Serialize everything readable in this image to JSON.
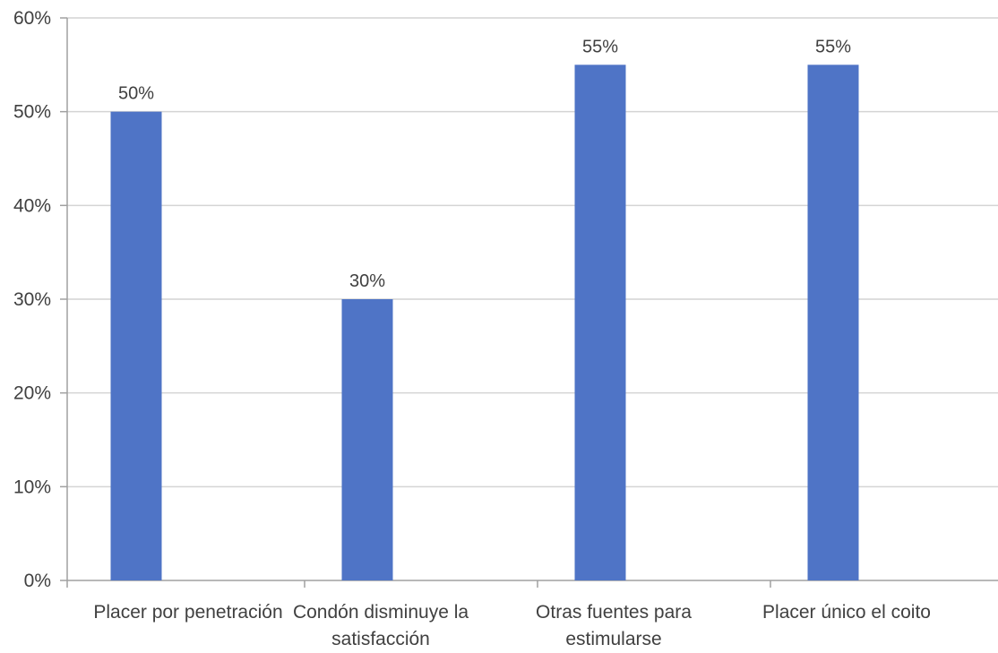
{
  "colors": {
    "bar": "#4f74c6",
    "grid": "#d4d4d4",
    "axis": "#a0a0a0",
    "text": "#404040"
  },
  "chart_data": {
    "type": "bar",
    "title": "",
    "xlabel": "",
    "ylabel": "",
    "categories": [
      "Placer por penetración",
      "Condón disminuye la satisfacción",
      "Otras fuentes para estimularse",
      "Placer único el coito"
    ],
    "category_lines": [
      [
        "Placer por penetración"
      ],
      [
        "Condón disminuye la",
        "satisfacción"
      ],
      [
        "Otras fuentes para",
        "estimularse"
      ],
      [
        "Placer único el coito"
      ]
    ],
    "values": [
      50,
      30,
      55,
      55
    ],
    "data_labels": [
      "50%",
      "30%",
      "55%",
      "55%"
    ],
    "ylim": [
      0,
      60
    ],
    "yticks": [
      0,
      10,
      20,
      30,
      40,
      50,
      60
    ],
    "ytick_labels": [
      "0%",
      "10%",
      "20%",
      "30%",
      "40%",
      "50%",
      "60%"
    ],
    "grid": true,
    "legend": "none"
  }
}
